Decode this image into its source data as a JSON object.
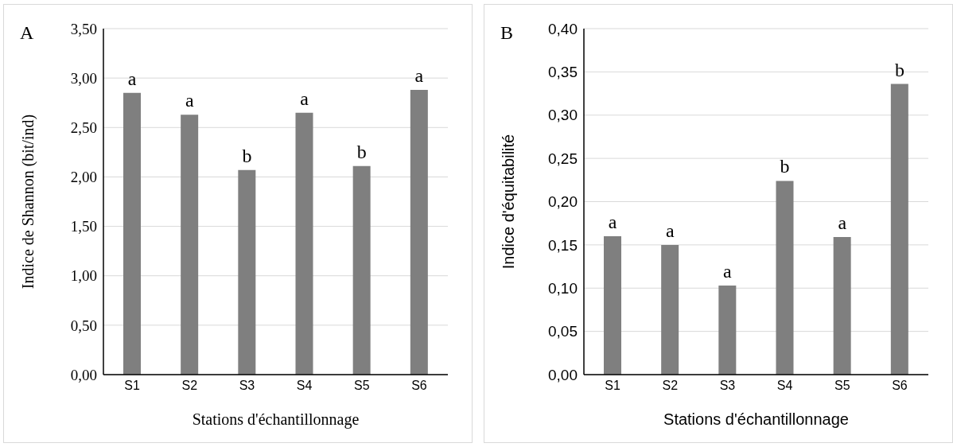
{
  "chart_data": [
    {
      "type": "bar",
      "title": "A",
      "xlabel": "Stations d'échantillonnage",
      "ylabel": "Indice de Shannon (bit/ind)",
      "categories": [
        "S1",
        "S2",
        "S3",
        "S4",
        "S5",
        "S6"
      ],
      "values": [
        2.85,
        2.63,
        2.07,
        2.65,
        2.11,
        2.88
      ],
      "color": "#7f7f7f",
      "ylim": [
        0,
        3.5
      ],
      "yticks": [
        {
          "value": 0,
          "label": "0,00"
        },
        {
          "value": 0.5,
          "label": "0,50"
        },
        {
          "value": 1,
          "label": "1,00"
        },
        {
          "value": 1.5,
          "label": "1,50"
        },
        {
          "value": 2,
          "label": "2,00"
        },
        {
          "value": 2.5,
          "label": "2,50"
        },
        {
          "value": 3,
          "label": "3,00"
        },
        {
          "value": 3.5,
          "label": "3,50"
        }
      ],
      "grid": "y",
      "legend": false,
      "annotations": [
        {
          "text": "a",
          "x": "S1",
          "y": 2.85
        },
        {
          "text": "a",
          "x": "S2",
          "y": 2.63
        },
        {
          "text": "b",
          "x": "S3",
          "y": 2.07
        },
        {
          "text": "a",
          "x": "S4",
          "y": 2.65
        },
        {
          "text": "b",
          "x": "S5",
          "y": 2.11
        },
        {
          "text": "a",
          "x": "S6",
          "y": 2.88
        }
      ]
    },
    {
      "type": "bar",
      "title": "B",
      "xlabel": "Stations d'échantillonnage",
      "ylabel": "Indice d'équitabilité",
      "categories": [
        "S1",
        "S2",
        "S3",
        "S4",
        "S5",
        "S6"
      ],
      "values": [
        0.16,
        0.15,
        0.103,
        0.224,
        0.159,
        0.336
      ],
      "color": "#7f7f7f",
      "ylim": [
        0,
        0.4
      ],
      "yticks": [
        {
          "value": 0,
          "label": "0,00"
        },
        {
          "value": 0.05,
          "label": "0,05"
        },
        {
          "value": 0.1,
          "label": "0,10"
        },
        {
          "value": 0.15,
          "label": "0,15"
        },
        {
          "value": 0.2,
          "label": "0,20"
        },
        {
          "value": 0.25,
          "label": "0,25"
        },
        {
          "value": 0.3,
          "label": "0,30"
        },
        {
          "value": 0.35,
          "label": "0,35"
        },
        {
          "value": 0.4,
          "label": "0,40"
        }
      ],
      "grid": "y",
      "legend": false,
      "annotations": [
        {
          "text": "a",
          "x": "S1",
          "y": 0.16
        },
        {
          "text": "a",
          "x": "S2",
          "y": 0.15
        },
        {
          "text": "a",
          "x": "S3",
          "y": 0.103
        },
        {
          "text": "b",
          "x": "S4",
          "y": 0.224
        },
        {
          "text": "a",
          "x": "S5",
          "y": 0.159
        },
        {
          "text": "b",
          "x": "S6",
          "y": 0.336
        }
      ]
    }
  ]
}
